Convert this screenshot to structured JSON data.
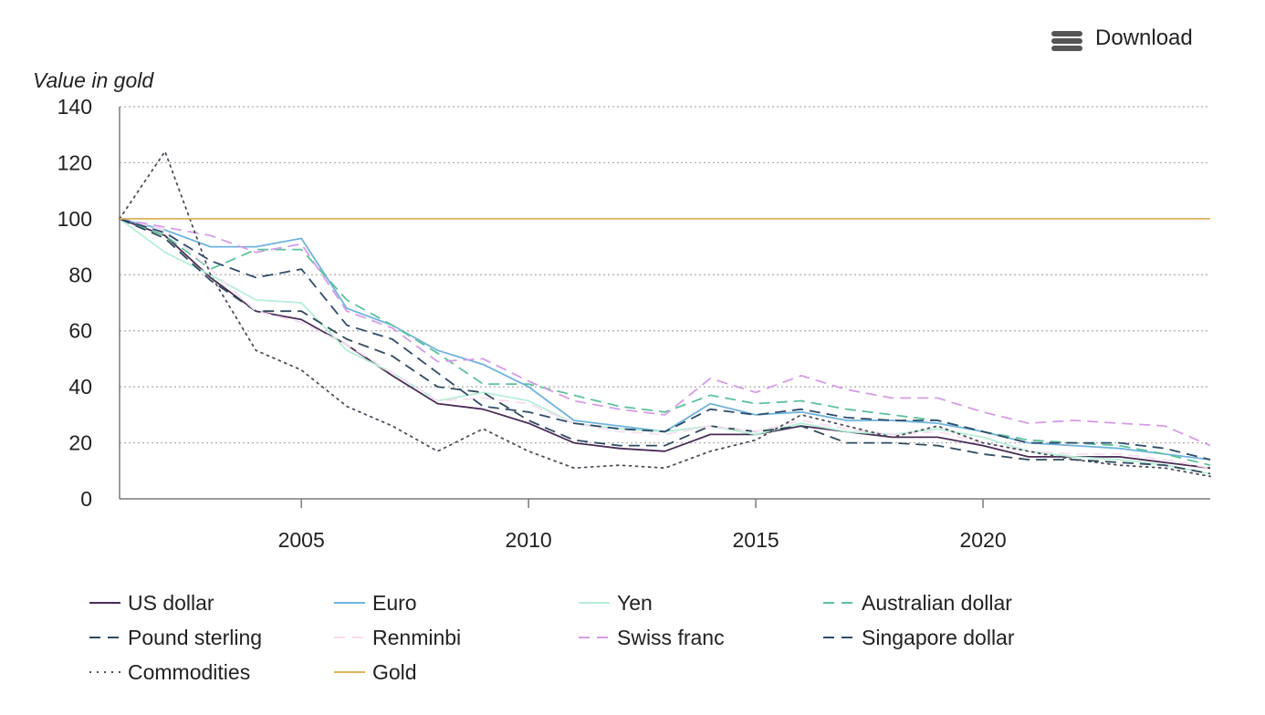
{
  "toolbar": {
    "download_label": "Download",
    "menu_icon": "hamburger-menu-icon"
  },
  "chart_data": {
    "type": "line",
    "title": "",
    "ylabel": "Value in gold",
    "xlabel": "",
    "xlim": [
      2001,
      2025
    ],
    "ylim": [
      0,
      140
    ],
    "xticks": [
      2005,
      2010,
      2015,
      2020
    ],
    "yticks": [
      0,
      20,
      40,
      60,
      80,
      100,
      120,
      140
    ],
    "grid": "horizontal dotted",
    "legend_position": "bottom",
    "x": [
      2001,
      2002,
      2003,
      2004,
      2005,
      2006,
      2007,
      2008,
      2009,
      2010,
      2011,
      2012,
      2013,
      2014,
      2015,
      2016,
      2017,
      2018,
      2019,
      2020,
      2021,
      2022,
      2023,
      2024,
      2025
    ],
    "series": [
      {
        "name": "US dollar",
        "color": "#4b2c57",
        "dash": "solid",
        "values": [
          100,
          94,
          79,
          67,
          64,
          55,
          44,
          34,
          32,
          27,
          20,
          18,
          17,
          23,
          23,
          26,
          24,
          22,
          22,
          19,
          15,
          15,
          15,
          13,
          11
        ]
      },
      {
        "name": "Euro",
        "color": "#6fb3dd",
        "dash": "solid",
        "values": [
          100,
          96,
          90,
          90,
          93,
          68,
          62,
          53,
          48,
          40,
          28,
          26,
          24,
          34,
          30,
          31,
          28,
          28,
          27,
          24,
          20,
          19,
          18,
          16,
          14
        ]
      },
      {
        "name": "Yen",
        "color": "#b5efd6",
        "dash": "solid",
        "values": [
          100,
          88,
          80,
          71,
          70,
          53,
          45,
          35,
          38,
          35,
          27,
          25,
          24,
          26,
          23,
          27,
          24,
          23,
          25,
          22,
          17,
          15,
          14,
          12,
          9
        ]
      },
      {
        "name": "Australian dollar",
        "color": "#5bc29a",
        "dash": "dashed",
        "values": [
          100,
          94,
          82,
          89,
          89,
          71,
          62,
          52,
          41,
          41,
          37,
          33,
          31,
          37,
          34,
          35,
          32,
          30,
          28,
          24,
          21,
          20,
          19,
          16,
          12
        ]
      },
      {
        "name": "Pound sterling",
        "color": "#2f4a5e",
        "dash": "dashed",
        "values": [
          100,
          93,
          78,
          67,
          67,
          57,
          51,
          40,
          38,
          28,
          21,
          19,
          19,
          26,
          24,
          26,
          20,
          20,
          19,
          16,
          14,
          14,
          13,
          12,
          9
        ]
      },
      {
        "name": "Renminbi",
        "color": "#f6dcf0",
        "dash": "dashed",
        "values": [
          100,
          96,
          82,
          67,
          63,
          55,
          45,
          35,
          36,
          34,
          27,
          24,
          23,
          26,
          24,
          28,
          25,
          23,
          24,
          20,
          17,
          16,
          16,
          14,
          11
        ]
      },
      {
        "name": "Swiss franc",
        "color": "#d69be8",
        "dash": "dashed",
        "values": [
          100,
          97,
          94,
          88,
          91,
          67,
          61,
          49,
          50,
          42,
          35,
          32,
          30,
          43,
          38,
          44,
          39,
          36,
          36,
          31,
          27,
          28,
          27,
          26,
          19
        ]
      },
      {
        "name": "Singapore dollar",
        "color": "#2f4c6b",
        "dash": "dashed",
        "values": [
          100,
          95,
          85,
          79,
          82,
          62,
          57,
          45,
          33,
          31,
          27,
          25,
          24,
          32,
          30,
          32,
          29,
          28,
          28,
          24,
          20,
          20,
          20,
          18,
          14
        ]
      },
      {
        "name": "Commodities",
        "color": "#4d4d5a",
        "dash": "dotted",
        "values": [
          100,
          124,
          80,
          53,
          46,
          33,
          26,
          17,
          25,
          17,
          11,
          12,
          11,
          17,
          21,
          30,
          26,
          22,
          26,
          20,
          17,
          14,
          12,
          11,
          8
        ]
      },
      {
        "name": "Gold",
        "color": "#e0b25a",
        "dash": "solid",
        "values": [
          100,
          100,
          100,
          100,
          100,
          100,
          100,
          100,
          100,
          100,
          100,
          100,
          100,
          100,
          100,
          100,
          100,
          100,
          100,
          100,
          100,
          100,
          100,
          100,
          100
        ]
      }
    ]
  }
}
